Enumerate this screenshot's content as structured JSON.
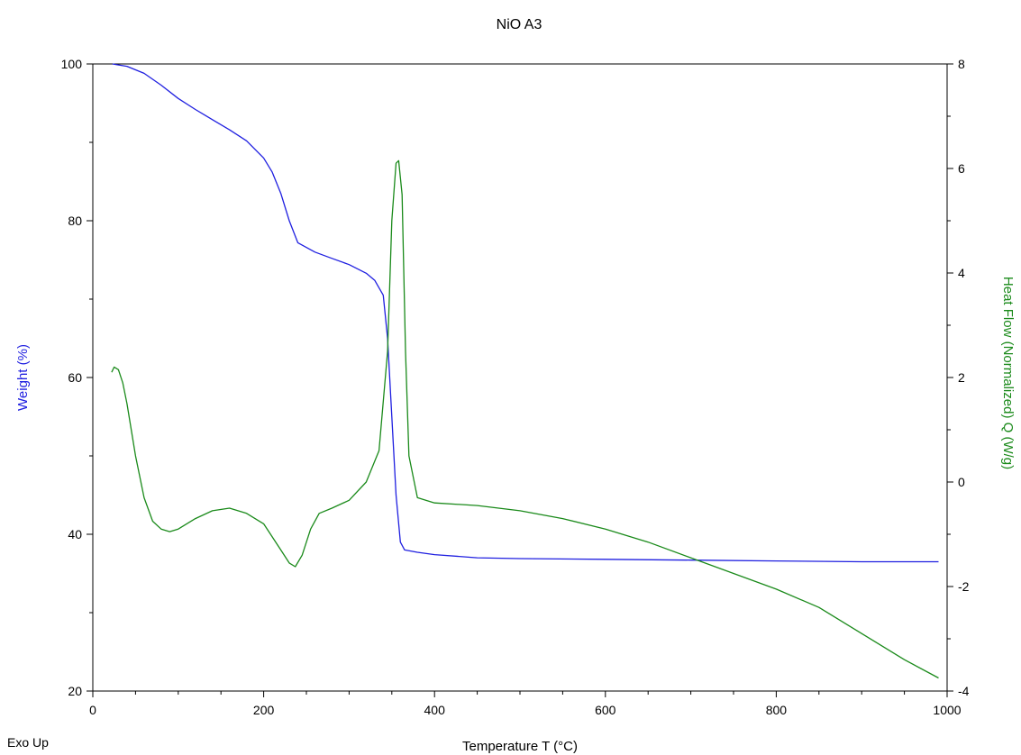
{
  "chart_data": {
    "type": "line",
    "title": "NiO A3",
    "xlabel": "Temperature T (°C)",
    "ylabel_left": "Weight (%)",
    "ylabel_right": "Heat Flow (Normalized) Q (W/g)",
    "corner_note": "Exo Up",
    "xlim": [
      0,
      1000
    ],
    "ylim_left": [
      20,
      100
    ],
    "ylim_right": [
      -4,
      8
    ],
    "x_ticks": [
      0,
      200,
      400,
      600,
      800,
      1000
    ],
    "y_left_ticks": [
      20,
      40,
      60,
      80,
      100
    ],
    "y_right_ticks": [
      -4,
      -2,
      0,
      2,
      4,
      6,
      8
    ],
    "grid": false,
    "colors": {
      "weight": "#1f1fe0",
      "heat_flow": "#1a8a1a",
      "axis": "#000000"
    },
    "series": [
      {
        "axis": "left",
        "x": [
          23,
          40,
          60,
          80,
          100,
          120,
          140,
          160,
          180,
          200,
          210,
          220,
          230,
          240,
          260,
          280,
          300,
          320,
          330,
          340,
          345,
          350,
          355,
          360,
          365,
          380,
          400,
          450,
          500,
          600,
          700,
          800,
          900,
          990
        ],
        "values": [
          100,
          99.7,
          98.8,
          97.3,
          95.6,
          94.2,
          92.9,
          91.6,
          90.2,
          88,
          86.2,
          83.5,
          80,
          77.2,
          76,
          75.2,
          74.4,
          73.3,
          72.4,
          70.5,
          65,
          55,
          45,
          39,
          38,
          37.7,
          37.4,
          37,
          36.9,
          36.8,
          36.7,
          36.6,
          36.5,
          36.5
        ]
      },
      {
        "axis": "right",
        "x": [
          22,
          25,
          30,
          35,
          40,
          50,
          60,
          70,
          80,
          90,
          100,
          120,
          140,
          160,
          180,
          200,
          210,
          220,
          230,
          237,
          245,
          255,
          265,
          280,
          300,
          320,
          335,
          345,
          350,
          355,
          358,
          362,
          366,
          370,
          380,
          400,
          450,
          500,
          550,
          600,
          650,
          700,
          750,
          800,
          850,
          900,
          950,
          990
        ],
        "values": [
          2.1,
          2.2,
          2.15,
          1.9,
          1.5,
          0.5,
          -0.3,
          -0.75,
          -0.9,
          -0.95,
          -0.9,
          -0.7,
          -0.55,
          -0.5,
          -0.6,
          -0.8,
          -1.05,
          -1.3,
          -1.55,
          -1.62,
          -1.4,
          -0.9,
          -0.6,
          -0.5,
          -0.35,
          0,
          0.6,
          2.5,
          5.0,
          6.1,
          6.15,
          5.5,
          2.5,
          0.5,
          -0.3,
          -0.4,
          -0.45,
          -0.55,
          -0.7,
          -0.9,
          -1.15,
          -1.45,
          -1.75,
          -2.05,
          -2.4,
          -2.9,
          -3.4,
          -3.75
        ]
      }
    ]
  }
}
